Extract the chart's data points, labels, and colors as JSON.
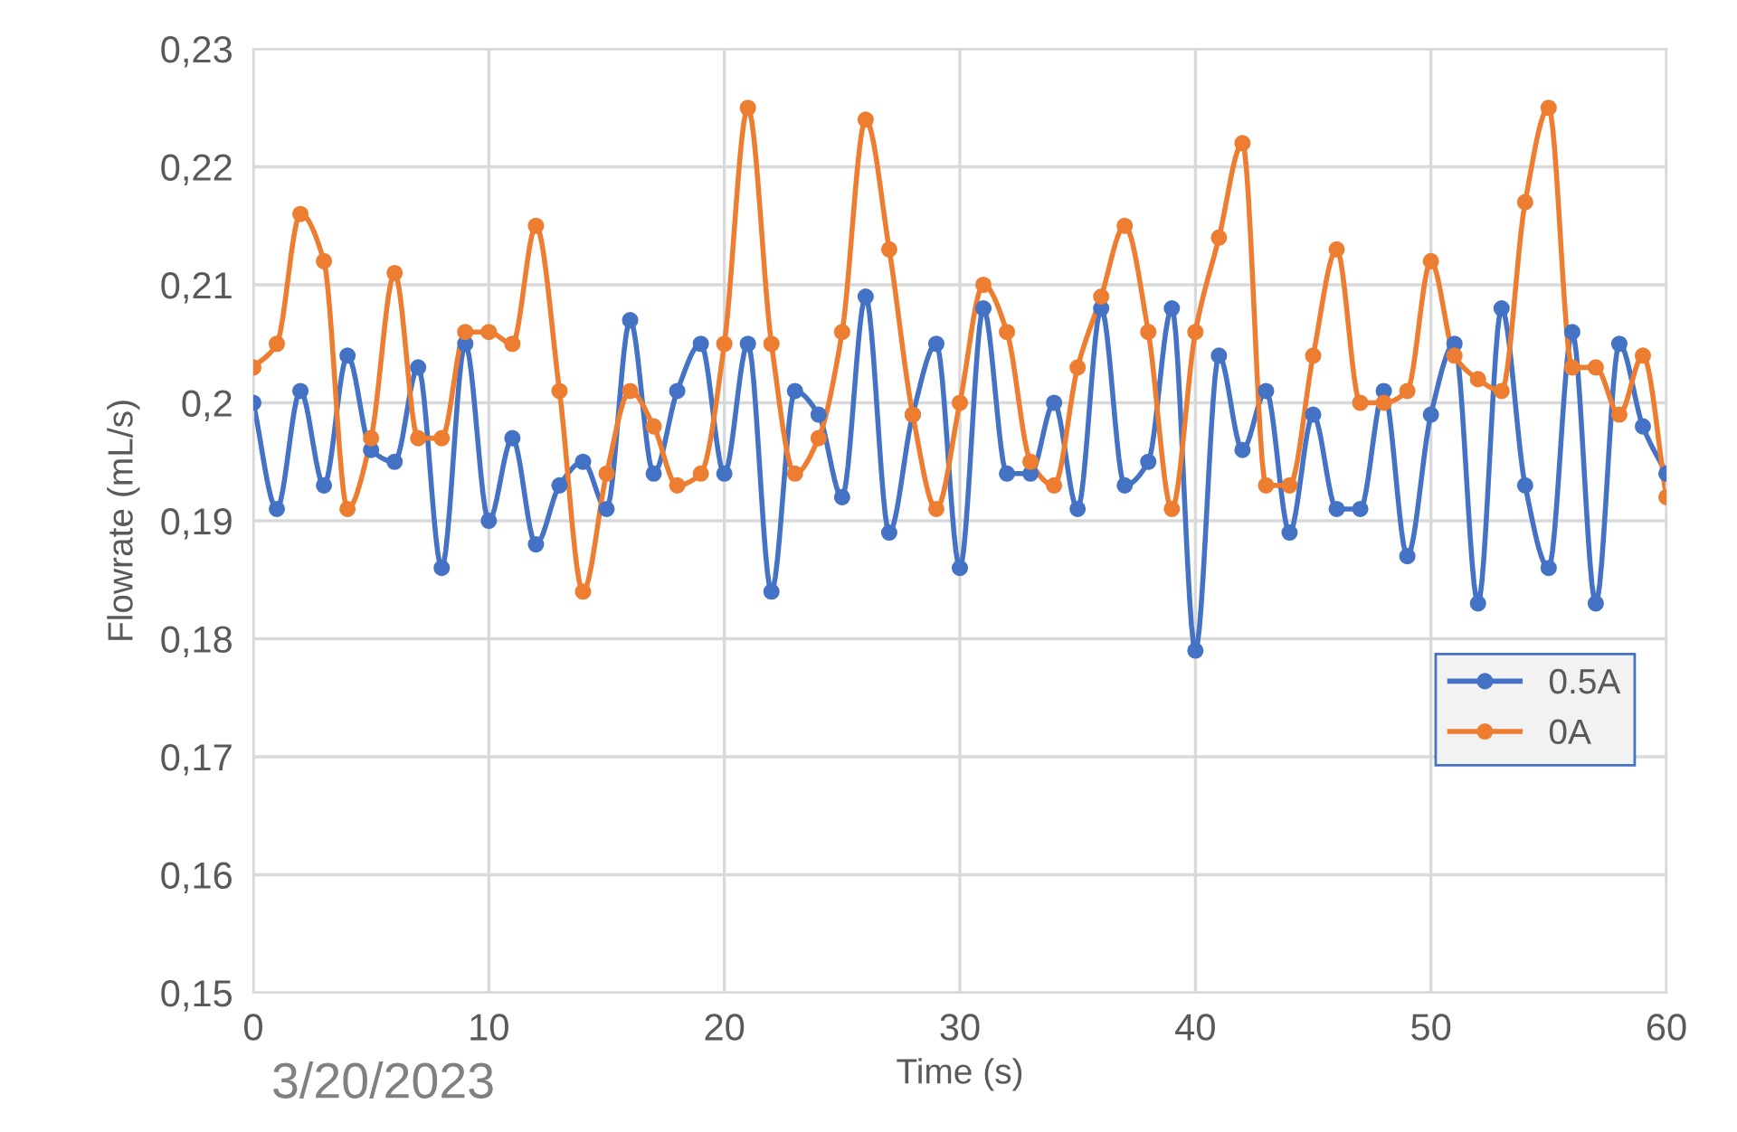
{
  "chart_data": {
    "type": "line",
    "xlabel": "Time (s)",
    "ylabel": "Flowrate (mL/s)",
    "x": [
      0,
      1,
      2,
      3,
      4,
      5,
      6,
      7,
      8,
      9,
      10,
      11,
      12,
      13,
      14,
      15,
      16,
      17,
      18,
      19,
      20,
      21,
      22,
      23,
      24,
      25,
      26,
      27,
      28,
      29,
      30,
      31,
      32,
      33,
      34,
      35,
      36,
      37,
      38,
      39,
      40,
      41,
      42,
      43,
      44,
      45,
      46,
      47,
      48,
      49,
      50,
      51,
      52,
      53,
      54,
      55,
      56,
      57,
      58,
      59,
      60
    ],
    "series": [
      {
        "name": "0.5A",
        "color": "#4472c4",
        "values": [
          0.2,
          0.191,
          0.201,
          0.193,
          0.204,
          0.196,
          0.195,
          0.203,
          0.186,
          0.205,
          0.19,
          0.197,
          0.188,
          0.193,
          0.195,
          0.191,
          0.207,
          0.194,
          0.201,
          0.205,
          0.194,
          0.205,
          0.184,
          0.201,
          0.199,
          0.192,
          0.209,
          0.189,
          0.199,
          0.205,
          0.186,
          0.208,
          0.194,
          0.194,
          0.2,
          0.191,
          0.208,
          0.193,
          0.195,
          0.208,
          0.179,
          0.204,
          0.196,
          0.201,
          0.189,
          0.199,
          0.191,
          0.191,
          0.201,
          0.187,
          0.199,
          0.205,
          0.183,
          0.208,
          0.193,
          0.186,
          0.206,
          0.183,
          0.205,
          0.198,
          0.194
        ]
      },
      {
        "name": "0A",
        "color": "#ed7d31",
        "values": [
          0.203,
          0.205,
          0.216,
          0.212,
          0.191,
          0.197,
          0.211,
          0.197,
          0.197,
          0.206,
          0.206,
          0.205,
          0.215,
          0.201,
          0.184,
          0.194,
          0.201,
          0.198,
          0.193,
          0.194,
          0.205,
          0.225,
          0.205,
          0.194,
          0.197,
          0.206,
          0.224,
          0.213,
          0.199,
          0.191,
          0.2,
          0.21,
          0.206,
          0.195,
          0.193,
          0.203,
          0.209,
          0.215,
          0.206,
          0.191,
          0.206,
          0.214,
          0.222,
          0.193,
          0.193,
          0.204,
          0.213,
          0.2,
          0.2,
          0.201,
          0.212,
          0.204,
          0.202,
          0.201,
          0.217,
          0.225,
          0.203,
          0.203,
          0.199,
          0.204,
          0.192
        ]
      }
    ],
    "xlim": [
      0,
      60
    ],
    "xticks": [
      0,
      10,
      20,
      30,
      40,
      50,
      60
    ],
    "ylim": [
      0.15,
      0.23
    ],
    "yticks": [
      {
        "value": 0.15,
        "label": "0,15"
      },
      {
        "value": 0.16,
        "label": "0,16"
      },
      {
        "value": 0.17,
        "label": "0,17"
      },
      {
        "value": 0.18,
        "label": "0,18"
      },
      {
        "value": 0.19,
        "label": "0,19"
      },
      {
        "value": 0.2,
        "label": "0,2"
      },
      {
        "value": 0.21,
        "label": "0,21"
      },
      {
        "value": 0.22,
        "label": "0,22"
      },
      {
        "value": 0.23,
        "label": "0,23"
      }
    ],
    "grid": true,
    "legend": "right",
    "marker": "circle",
    "line_style": "solid",
    "annotations": [
      "3/20/2023"
    ]
  }
}
